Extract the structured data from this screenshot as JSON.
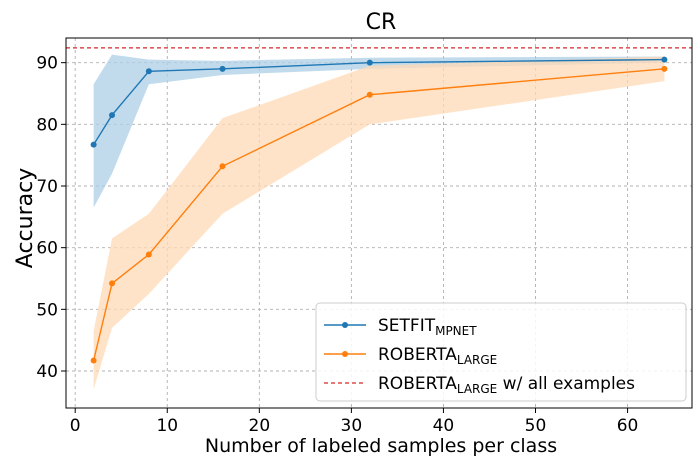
{
  "chart_data": {
    "type": "line",
    "title": "CR",
    "xlabel": "Number of labeled samples per class",
    "ylabel": "Accuracy",
    "xlim": [
      -1,
      67
    ],
    "ylim": [
      34,
      94
    ],
    "xticks": [
      0,
      10,
      20,
      30,
      40,
      50,
      60
    ],
    "yticks": [
      40,
      50,
      60,
      70,
      80,
      90
    ],
    "grid": true,
    "legend_position": "lower-right",
    "series": [
      {
        "name": "SETFIT",
        "name_sub": "MPNET",
        "color": "#1f77b4",
        "band_color": "#aecfe6",
        "x": [
          2,
          4,
          8,
          16,
          32,
          64
        ],
        "y": [
          76.7,
          81.5,
          88.6,
          89.0,
          90.0,
          90.5
        ],
        "band_lower": [
          66.5,
          72.0,
          86.5,
          88.0,
          89.0,
          90.0
        ],
        "band_upper": [
          86.5,
          91.3,
          90.5,
          90.3,
          90.8,
          91.0
        ]
      },
      {
        "name": "ROBERTA",
        "name_sub": "LARGE",
        "color": "#ff7f0e",
        "band_color": "#ffd9b6",
        "x": [
          2,
          4,
          8,
          16,
          32,
          64
        ],
        "y": [
          41.7,
          54.2,
          58.9,
          73.2,
          84.8,
          89.0
        ],
        "band_lower": [
          37.0,
          47.0,
          52.5,
          65.5,
          80.0,
          87.0
        ],
        "band_upper": [
          46.5,
          61.5,
          65.5,
          81.0,
          89.5,
          91.0
        ]
      }
    ],
    "reference_line": {
      "name": "ROBERTA",
      "name_sub": "LARGE",
      "name_suffix": " w/ all examples",
      "y": 92.4,
      "color": "#d62728",
      "style": "dashed"
    }
  }
}
